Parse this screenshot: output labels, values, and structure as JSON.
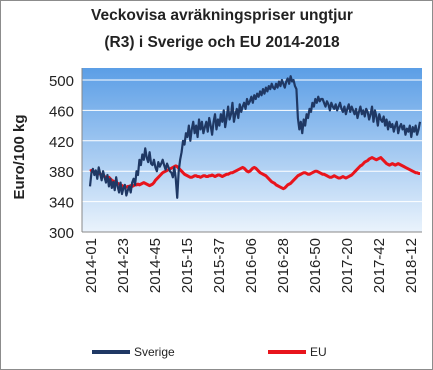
{
  "chart_data": {
    "type": "line",
    "title": [
      "Veckovisa avräkningspriser ungtjur",
      "(R3) i Sverige och EU 2014-2018"
    ],
    "y_label": "Euro/100 kg",
    "ylim": [
      300,
      500
    ],
    "yticks": [
      300,
      340,
      380,
      420,
      460,
      500
    ],
    "grid": true,
    "legend": "bottom",
    "categories": [
      "2014-01",
      null,
      null,
      null,
      null,
      null,
      null,
      null,
      null,
      null,
      null,
      null,
      null,
      null,
      null,
      null,
      null,
      null,
      null,
      null,
      null,
      null,
      "2014-23",
      null,
      null,
      null,
      null,
      null,
      null,
      null,
      null,
      null,
      null,
      null,
      null,
      null,
      null,
      null,
      null,
      null,
      null,
      null,
      null,
      null,
      "2014-45",
      null,
      null,
      null,
      null,
      null,
      null,
      null,
      null,
      null,
      null,
      null,
      null,
      null,
      null,
      null,
      null,
      null,
      null,
      null,
      null,
      null,
      "2015-15",
      null,
      null,
      null,
      null,
      null,
      null,
      null,
      null,
      null,
      null,
      null,
      null,
      null,
      null,
      null,
      null,
      null,
      null,
      null,
      null,
      null,
      "2015-37",
      null,
      null,
      null,
      null,
      null,
      null,
      null,
      null,
      null,
      null,
      null,
      null,
      null,
      null,
      null,
      null,
      null,
      null,
      null,
      null,
      null,
      "2016-06",
      null,
      null,
      null,
      null,
      null,
      null,
      null,
      null,
      null,
      null,
      null,
      null,
      null,
      null,
      null,
      null,
      null,
      null,
      null,
      null,
      null,
      "2016-28",
      null,
      null,
      null,
      null,
      null,
      null,
      null,
      null,
      null,
      null,
      null,
      null,
      null,
      null,
      null,
      null,
      null,
      null,
      null,
      null,
      null,
      "2016-50",
      null,
      null,
      null,
      null,
      null,
      null,
      null,
      null,
      null,
      null,
      null,
      null,
      null,
      null,
      null,
      null,
      null,
      null,
      null,
      null,
      null,
      "2017-20",
      null,
      null,
      null,
      null,
      null,
      null,
      null,
      null,
      null,
      null,
      null,
      null,
      null,
      null,
      null,
      null,
      null,
      null,
      null,
      null,
      null,
      "2017-42",
      null,
      null,
      null,
      null,
      null,
      null,
      null,
      null,
      null,
      null,
      null,
      null,
      null,
      null,
      null,
      null,
      null,
      null,
      null,
      null,
      null,
      "2018-12",
      null,
      null,
      null,
      null,
      null,
      null,
      null
    ],
    "series": [
      {
        "name": "Sverige",
        "color": "#1f3864",
        "values": [
          360,
          378,
          383,
          375,
          381,
          370,
          385,
          377,
          368,
          380,
          372,
          365,
          375,
          360,
          370,
          358,
          366,
          355,
          372,
          360,
          352,
          365,
          350,
          358,
          362,
          348,
          355,
          360,
          352,
          365,
          370,
          362,
          380,
          375,
          395,
          388,
          402,
          395,
          410,
          398,
          392,
          405,
          390,
          388,
          395,
          385,
          380,
          392,
          386,
          390,
          395,
          388,
          382,
          390,
          385,
          380,
          378,
          372,
          385,
          370,
          345,
          380,
          395,
          405,
          420,
          415,
          430,
          425,
          440,
          420,
          435,
          445,
          430,
          440,
          425,
          448,
          435,
          445,
          430,
          438,
          445,
          432,
          450,
          440,
          428,
          445,
          455,
          435,
          448,
          440,
          455,
          445,
          460,
          438,
          450,
          465,
          448,
          455,
          470,
          445,
          455,
          462,
          450,
          468,
          458,
          465,
          470,
          462,
          475,
          468,
          472,
          478,
          470,
          480,
          475,
          482,
          478,
          485,
          480,
          488,
          482,
          490,
          485,
          492,
          488,
          495,
          490,
          488,
          495,
          490,
          498,
          492,
          500,
          495,
          490,
          498,
          502,
          495,
          505,
          498,
          500,
          492,
          488,
          450,
          435,
          445,
          430,
          448,
          440,
          455,
          450,
          462,
          458,
          470,
          465,
          475,
          470,
          478,
          472,
          475,
          475,
          470,
          465,
          472,
          468,
          460,
          470,
          465,
          462,
          468,
          460,
          465,
          470,
          462,
          458,
          465,
          455,
          462,
          468,
          458,
          465,
          460,
          455,
          462,
          450,
          458,
          465,
          455,
          460,
          452,
          462,
          458,
          448,
          455,
          465,
          445,
          460,
          452,
          440,
          455,
          448,
          445,
          452,
          440,
          448,
          435,
          445,
          438,
          442,
          432,
          440,
          445,
          430,
          438,
          442,
          435,
          440,
          428,
          436,
          432,
          440,
          425,
          438,
          432,
          440,
          428,
          435,
          445
        ]
      },
      {
        "name": "EU",
        "color": "#e8141c",
        "values": [
          380,
          381,
          380,
          379,
          378,
          377,
          378,
          376,
          375,
          374,
          373,
          372,
          371,
          372,
          370,
          368,
          367,
          366,
          365,
          364,
          363,
          362,
          361,
          360,
          360,
          359,
          360,
          360,
          361,
          360,
          361,
          362,
          362,
          363,
          362,
          363,
          364,
          365,
          364,
          363,
          362,
          361,
          362,
          363,
          365,
          368,
          370,
          372,
          374,
          376,
          378,
          379,
          380,
          381,
          382,
          383,
          384,
          385,
          386,
          387,
          386,
          384,
          382,
          380,
          378,
          376,
          375,
          374,
          373,
          372,
          372,
          373,
          374,
          374,
          373,
          373,
          372,
          373,
          374,
          374,
          373,
          373,
          374,
          374,
          375,
          374,
          373,
          374,
          375,
          375,
          374,
          373,
          374,
          375,
          376,
          376,
          377,
          378,
          378,
          379,
          380,
          381,
          382,
          383,
          384,
          385,
          384,
          382,
          380,
          379,
          380,
          382,
          384,
          385,
          384,
          382,
          380,
          378,
          377,
          376,
          375,
          374,
          372,
          370,
          368,
          366,
          365,
          364,
          362,
          361,
          360,
          359,
          358,
          357,
          358,
          360,
          362,
          363,
          364,
          366,
          368,
          370,
          372,
          374,
          375,
          376,
          377,
          378,
          378,
          377,
          376,
          376,
          377,
          378,
          379,
          380,
          380,
          379,
          378,
          377,
          376,
          376,
          375,
          374,
          373,
          372,
          372,
          373,
          374,
          373,
          372,
          371,
          371,
          372,
          373,
          372,
          371,
          372,
          373,
          374,
          375,
          377,
          379,
          381,
          383,
          385,
          387,
          388,
          390,
          392,
          393,
          394,
          396,
          397,
          398,
          397,
          396,
          395,
          396,
          397,
          398,
          396,
          394,
          392,
          390,
          389,
          388,
          389,
          390,
          389,
          388,
          389,
          390,
          389,
          388,
          387,
          386,
          385,
          384,
          383,
          382,
          381,
          380,
          379,
          378,
          378,
          377,
          377
        ]
      }
    ]
  }
}
